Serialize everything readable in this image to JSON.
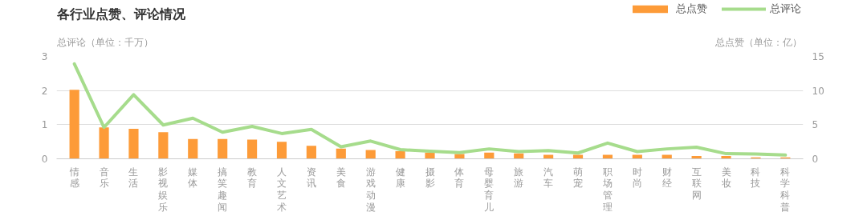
{
  "chart_data": {
    "type": "bar",
    "title": "各行业点赞、评论情况",
    "ylabel": "总评论（单位：千万）",
    "y2label": "总点赞（单位：亿）",
    "categories": [
      "情感",
      "音乐",
      "生活",
      "影视娱乐",
      "媒体",
      "搞笑趣闻",
      "教育",
      "人文艺术",
      "资讯",
      "美食",
      "游戏动漫",
      "健康",
      "摄影",
      "体育",
      "母婴育儿",
      "旅游",
      "汽车",
      "萌宠",
      "职场管理",
      "时尚",
      "财经",
      "互联网",
      "美妆",
      "科技",
      "科学科普"
    ],
    "series": [
      {
        "name": "总点赞",
        "axis": "y2",
        "color": "#fd9b38",
        "values": [
          10.1,
          4.6,
          4.4,
          3.9,
          2.9,
          2.9,
          2.8,
          2.5,
          1.9,
          1.5,
          1.3,
          1.1,
          0.9,
          0.7,
          0.9,
          0.8,
          0.6,
          0.6,
          0.6,
          0.6,
          0.6,
          0.4,
          0.4,
          0.2,
          0.2
        ]
      },
      {
        "name": "总评论",
        "type": "line",
        "color": "#a6dc8c",
        "values": [
          2.78,
          0.92,
          1.88,
          0.99,
          1.19,
          0.78,
          0.95,
          0.74,
          0.86,
          0.35,
          0.52,
          0.27,
          0.22,
          0.18,
          0.29,
          0.21,
          0.24,
          0.17,
          0.46,
          0.21,
          0.29,
          0.34,
          0.15,
          0.14,
          0.11
        ]
      }
    ],
    "ylim": [
      0,
      3
    ],
    "yticks": [
      0,
      1,
      2,
      3
    ],
    "y2lim": [
      0,
      15
    ],
    "y2ticks": [
      0,
      5,
      10,
      15
    ],
    "grid": "y",
    "legend": "top right"
  }
}
